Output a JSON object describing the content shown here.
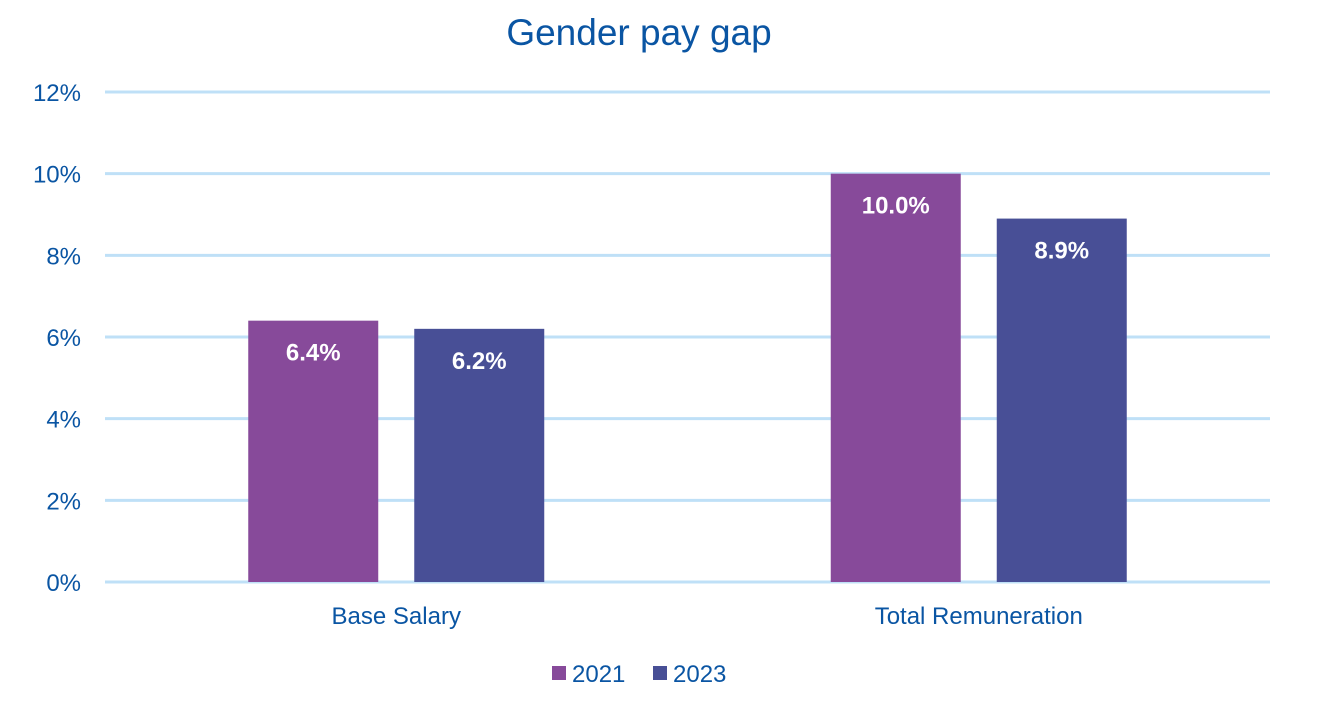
{
  "chart_data": {
    "type": "bar",
    "title": "Gender pay gap",
    "xlabel": "",
    "ylabel": "",
    "categories": [
      "Base Salary",
      "Total Remuneration"
    ],
    "series": [
      {
        "name": "2021",
        "values": [
          6.4,
          10.0
        ],
        "labels": [
          "6.4%",
          "10.0%"
        ],
        "color": "#874a9a"
      },
      {
        "name": "2023",
        "values": [
          6.2,
          8.9
        ],
        "labels": [
          "6.2%",
          "8.9%"
        ],
        "color": "#484f96"
      }
    ],
    "ylim": [
      0,
      12
    ],
    "yticks": [
      0,
      2,
      4,
      6,
      8,
      10,
      12
    ],
    "ytick_labels": [
      "0%",
      "2%",
      "4%",
      "6%",
      "8%",
      "10%",
      "12%"
    ],
    "grid": true,
    "legend_position": "bottom",
    "colors": {
      "text": "#0a55a3",
      "grid": "#bfe0f7",
      "label": "#ffffff"
    }
  }
}
